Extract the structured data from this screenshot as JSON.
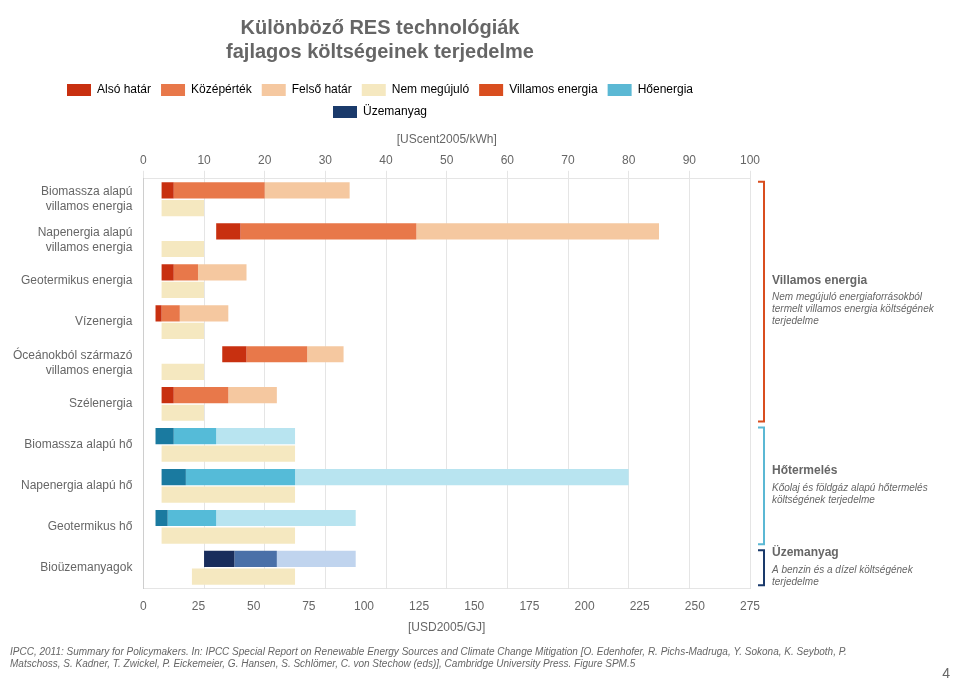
{
  "chart_data": {
    "type": "bar",
    "orientation": "horizontal",
    "title": "Különböző RES technológiák\nfajlagos költségeinek terjedelme",
    "xlabel": "[UScent2005/kWh]",
    "x2label": "[USD2005/GJ]",
    "xlim": [
      0,
      100
    ],
    "xticks": [
      0,
      10,
      20,
      30,
      40,
      50,
      60,
      70,
      80,
      90,
      100
    ],
    "x2lim": [
      0,
      275
    ],
    "x2ticks": [
      0,
      25,
      50,
      75,
      100,
      125,
      150,
      175,
      200,
      225,
      250,
      275
    ],
    "grid": true,
    "legend": "top",
    "categories": [
      "Biomassza alapú\nvillamos energia",
      "Napenergia alapú\nvillamos energia",
      "Geotermikus energia",
      "Vízenergia",
      "Óceánokból származó\nvillamos energia",
      "Szélenergia",
      "Biomassza alapú hő",
      "Napenergia alapú hő",
      "Geotermikus hő",
      "Bioüzemanyagok"
    ],
    "series": [
      {
        "name": "Alsó határ",
        "colors": [
          "#c83010",
          "#c83010",
          "#c83010",
          "#c83010",
          "#c83010",
          "#c83010",
          "#1a7aa0",
          "#1a7aa0",
          "#1a7aa0",
          "#192d5c"
        ],
        "values": [
          [
            3,
            5
          ],
          [
            12,
            16
          ],
          [
            3,
            5
          ],
          [
            2,
            3
          ],
          [
            13,
            17
          ],
          [
            3,
            5
          ],
          [
            2,
            5
          ],
          [
            3,
            7
          ],
          [
            2,
            4
          ],
          [
            10,
            15
          ]
        ]
      },
      {
        "name": "Középérték",
        "colors": [
          "#e8784a",
          "#e8784a",
          "#e8784a",
          "#e8784a",
          "#e8784a",
          "#e8784a",
          "#55bbd8",
          "#55bbd8",
          "#55bbd8",
          "#4a70a8"
        ],
        "values": [
          [
            5,
            20
          ],
          [
            16,
            45
          ],
          [
            5,
            9
          ],
          [
            3,
            6
          ],
          [
            17,
            27
          ],
          [
            5,
            14
          ],
          [
            5,
            12
          ],
          [
            7,
            25
          ],
          [
            4,
            12
          ],
          [
            15,
            22
          ]
        ]
      },
      {
        "name": "Felső határ",
        "colors": [
          "#f5c8a0",
          "#f5c8a0",
          "#f5c8a0",
          "#f5c8a0",
          "#f5c8a0",
          "#f5c8a0",
          "#b8e4f0",
          "#b8e4f0",
          "#b8e4f0",
          "#c0d4ee"
        ],
        "values": [
          [
            20,
            34
          ],
          [
            45,
            85
          ],
          [
            9,
            17
          ],
          [
            6,
            14
          ],
          [
            27,
            33
          ],
          [
            14,
            22
          ],
          [
            12,
            25
          ],
          [
            25,
            80
          ],
          [
            12,
            35
          ],
          [
            22,
            35
          ]
        ]
      },
      {
        "name": "Nem megújuló",
        "color": "#f5e8c0",
        "values": [
          [
            3,
            10
          ],
          [
            3,
            10
          ],
          [
            3,
            10
          ],
          [
            3,
            10
          ],
          [
            3,
            10
          ],
          [
            3,
            10
          ],
          [
            3,
            25
          ],
          [
            3,
            25
          ],
          [
            3,
            25
          ],
          [
            8,
            25
          ]
        ]
      }
    ],
    "sections": [
      {
        "label": "Villamos energia",
        "legend_label": "Villamos energia",
        "color": "#d94e1f",
        "categories": [
          "Biomassza alapú\nvillamos energia",
          "Napenergia alapú\nvillamos energia",
          "Geotermikus energia",
          "Vízenergia",
          "Óceánokból származó\nvillamos energia",
          "Szélenergia"
        ],
        "annotation": "Nem megújuló energiaforrásokból termelt villamos energia költségének terjedelme"
      },
      {
        "label": "Hőtermelés",
        "legend_label": "Hőenergia",
        "color": "#5bb8d4",
        "categories": [
          "Biomassza alapú hő",
          "Napenergia alapú hő",
          "Geotermikus hő"
        ],
        "annotation": "Kőolaj és földgáz alapú hőtermelés költségének terjedelme"
      },
      {
        "label": "Üzemanyag",
        "legend_label": "Üzemanyag",
        "color": "#1a3a6b",
        "categories": [
          "Bioüzemanyagok"
        ],
        "annotation": "A benzin és a dízel költségének terjedelme"
      }
    ],
    "annotations": [
      "IPCC, 2011: Summary for Policymakers. In: IPCC Special Report on Renewable Energy Sources and Climate Change Mitigation [O. Edenhofer, R. Pichs-Madruga, Y. Sokona, K. Seyboth, P. Matschoss, S. Kadner, T. Zwickel, P. Eickemeier, G. Hansen, S. Schlömer, C. von Stechow (eds)], Cambridge University Press. Figure SPM.5",
      "4"
    ]
  }
}
